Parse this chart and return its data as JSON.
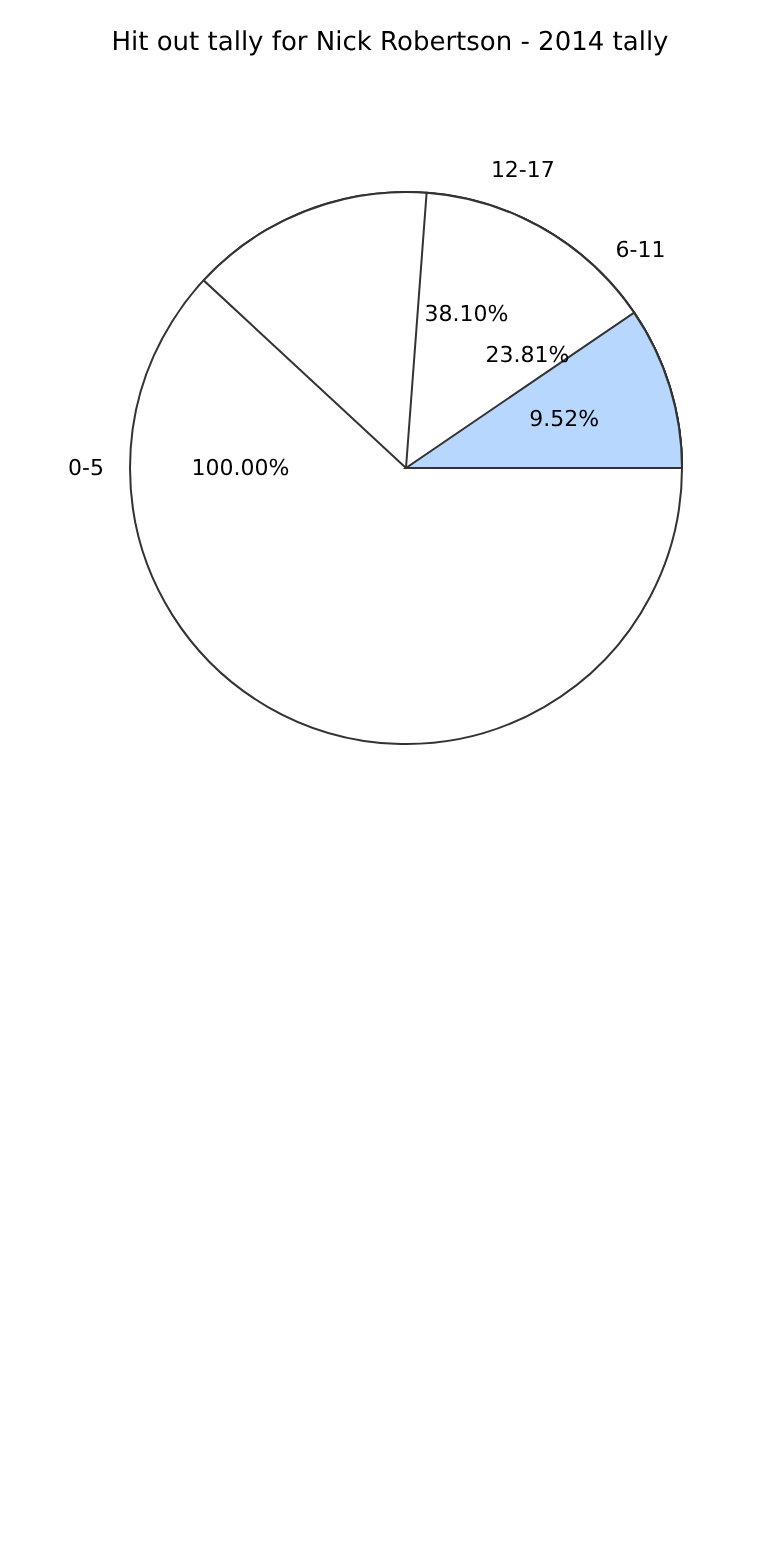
{
  "chart_data": {
    "type": "pie",
    "title": "Hit out tally for Nick Robertson - 2014 tally",
    "categories": [
      "0-5",
      "12-17",
      "6-11",
      null
    ],
    "values": [
      100,
      38.1,
      23.81,
      9.52
    ],
    "value_labels": [
      "100.00%",
      "38.10%",
      "23.81%",
      "9.52%"
    ],
    "colors": [
      "#ffffff",
      "#ffffff",
      "#ffffff",
      "#b7d7ff"
    ]
  }
}
